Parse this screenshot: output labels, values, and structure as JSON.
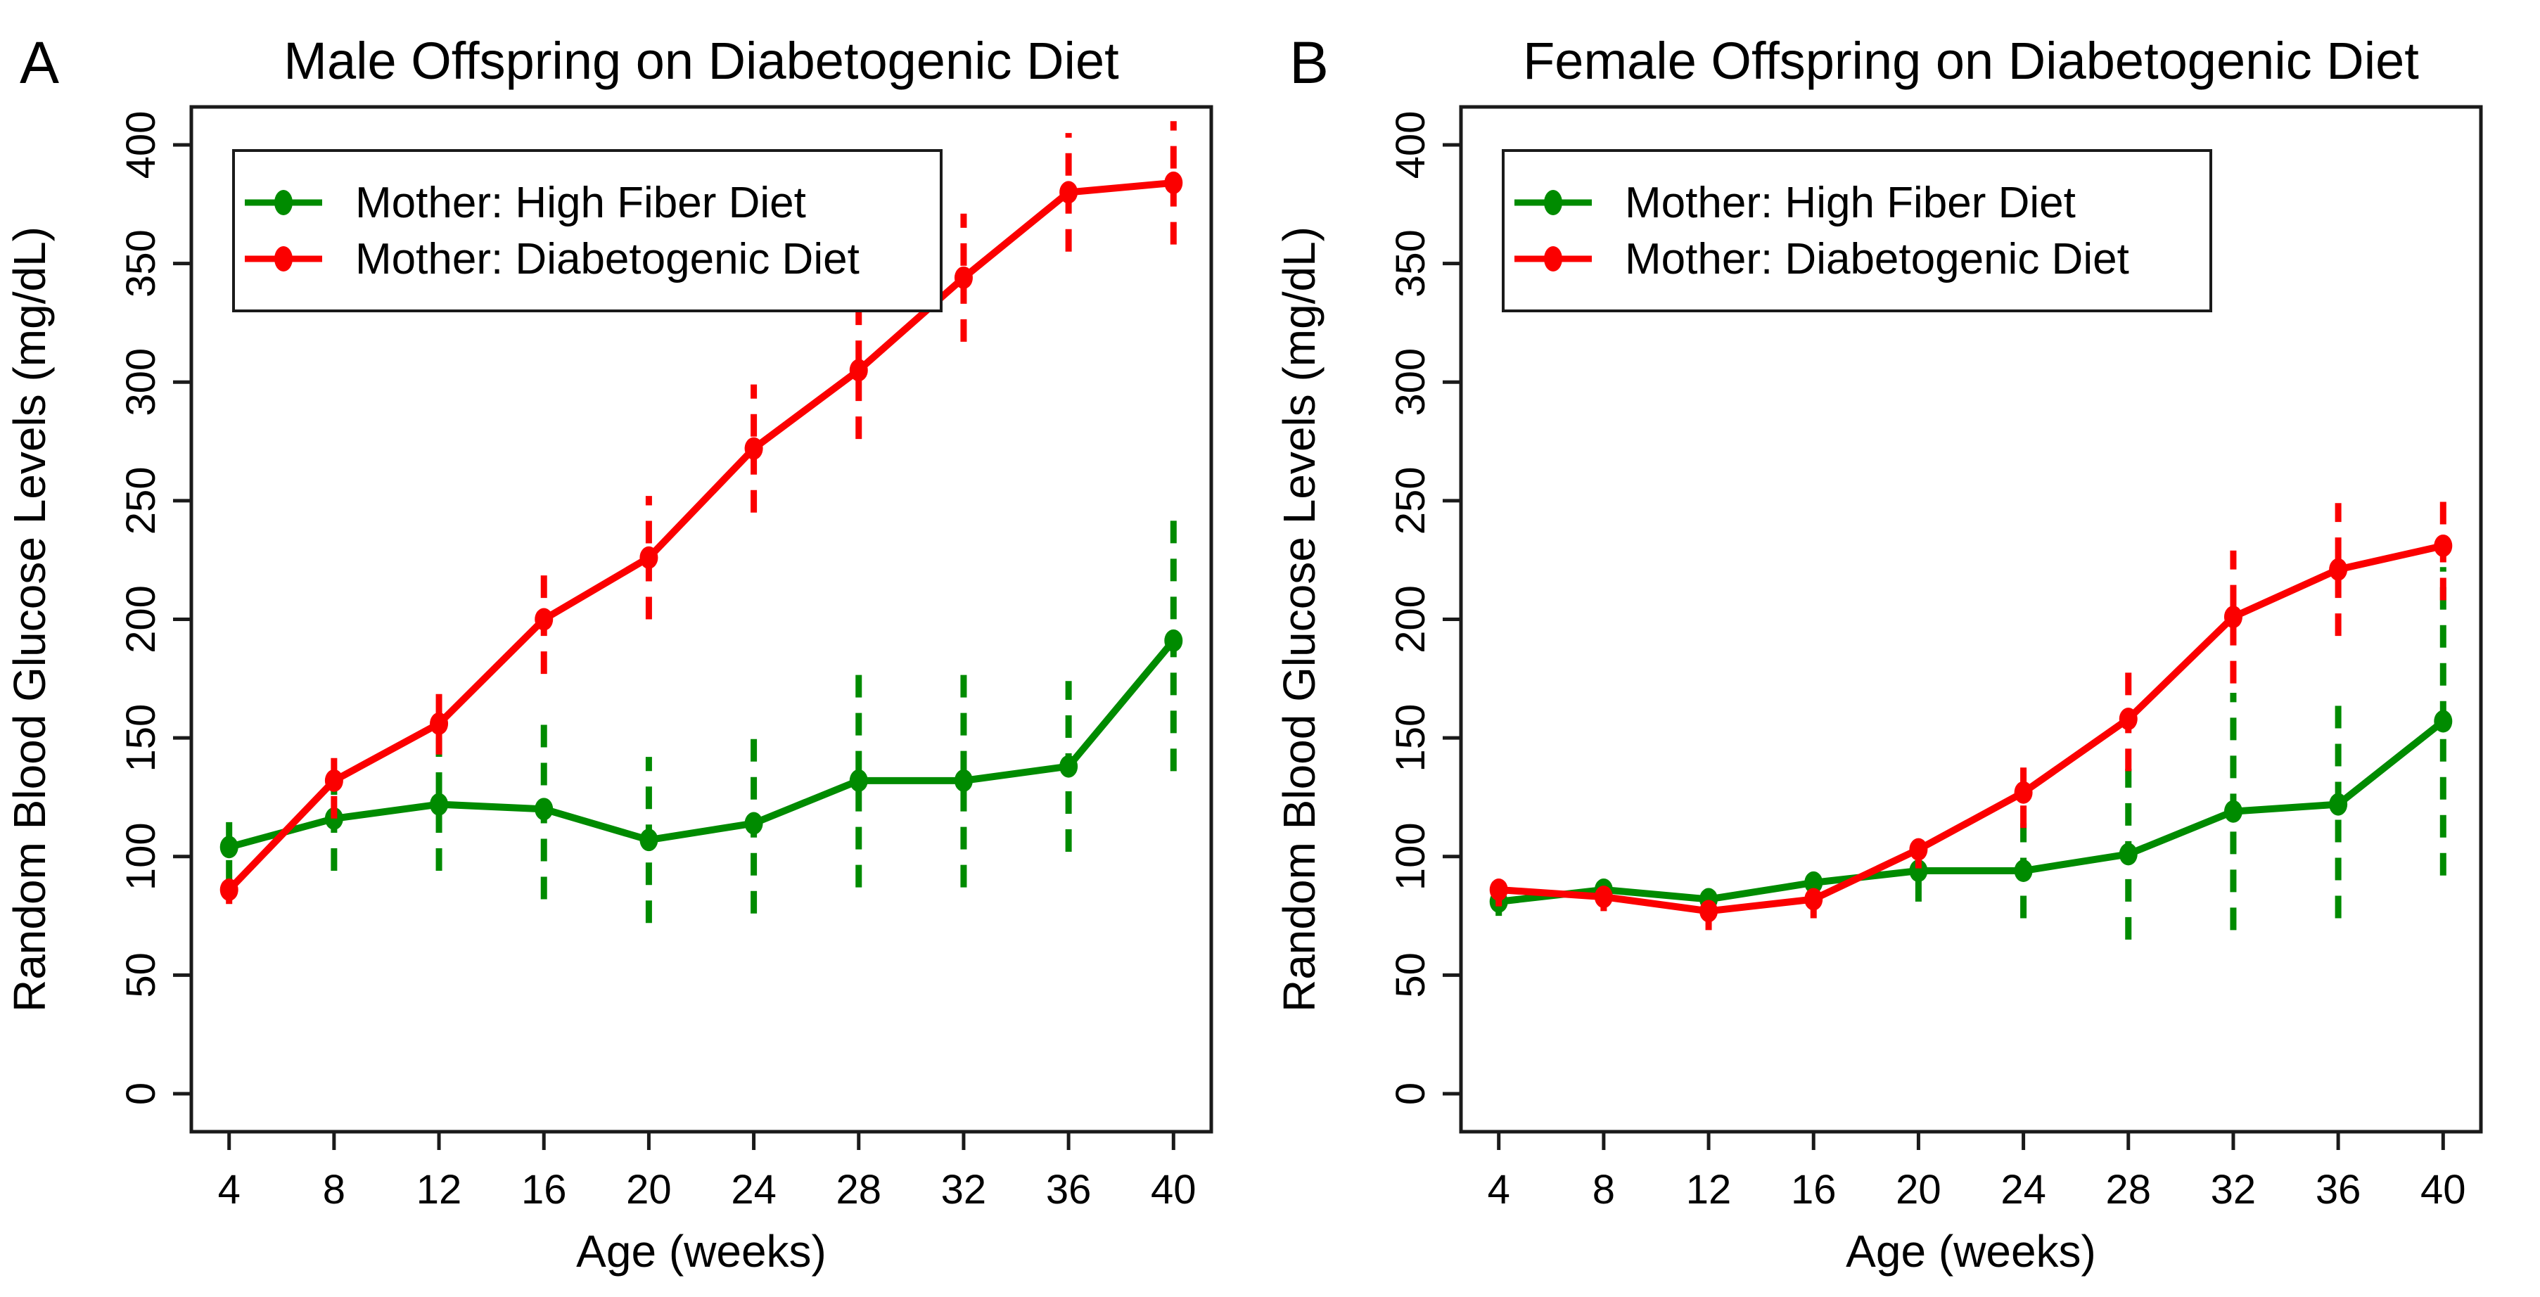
{
  "figure": {
    "background": "#ffffff",
    "colors": {
      "high_fiber_green": "#008B00",
      "diabetogenic_red": "#FB0000",
      "axis_black": "#1a1a1a",
      "text_black": "#000000"
    }
  },
  "chart_data": [
    {
      "type": "line",
      "panel_label": "A",
      "title": "Male Offspring on Diabetogenic Diet",
      "xlabel": "Age (weeks)",
      "ylabel": "Random Blood Glucose Levels (mg/dL)",
      "x": [
        4,
        8,
        12,
        16,
        20,
        24,
        28,
        32,
        36,
        40
      ],
      "xticks": [
        4,
        8,
        12,
        16,
        20,
        24,
        28,
        32,
        36,
        40
      ],
      "ylim": [
        0,
        400
      ],
      "yticks": [
        0,
        50,
        100,
        150,
        200,
        250,
        300,
        350,
        400
      ],
      "grid": false,
      "error_bar_style": "dashed",
      "legend_position": "top-left",
      "series": [
        {
          "name": "Mother: High Fiber Diet",
          "color": "#008B00",
          "values": [
            104,
            116,
            122,
            120,
            107,
            114,
            132,
            132,
            138,
            191
          ],
          "errors": [
            15,
            22,
            28,
            38,
            35,
            38,
            45,
            45,
            36,
            55
          ]
        },
        {
          "name": "Mother: Diabetogenic Diet",
          "color": "#FB0000",
          "values": [
            86,
            132,
            156,
            200,
            226,
            272,
            305,
            344,
            380,
            384
          ],
          "errors": [
            6,
            16,
            13,
            23,
            26,
            27,
            29,
            27,
            25,
            26
          ]
        }
      ]
    },
    {
      "type": "line",
      "panel_label": "B",
      "title": "Female Offspring on Diabetogenic Diet",
      "xlabel": "Age (weeks)",
      "ylabel": "Random Blood Glucose Levels (mg/dL)",
      "x": [
        4,
        8,
        12,
        16,
        20,
        24,
        28,
        32,
        36,
        40
      ],
      "xticks": [
        4,
        8,
        12,
        16,
        20,
        24,
        28,
        32,
        36,
        40
      ],
      "ylim": [
        0,
        400
      ],
      "yticks": [
        0,
        50,
        100,
        150,
        200,
        250,
        300,
        350,
        400
      ],
      "grid": false,
      "error_bar_style": "dashed",
      "legend_position": "top-left",
      "series": [
        {
          "name": "Mother: High Fiber Diet",
          "color": "#008B00",
          "values": [
            81,
            86,
            82,
            89,
            94,
            94,
            101,
            119,
            122,
            157
          ],
          "errors": [
            6,
            5,
            5,
            5,
            13,
            20,
            36,
            50,
            48,
            65
          ]
        },
        {
          "name": "Mother: Diabetogenic Diet",
          "color": "#FB0000",
          "values": [
            86,
            83,
            77,
            82,
            103,
            127,
            158,
            201,
            221,
            231
          ],
          "errors": [
            7,
            6,
            8,
            8,
            8,
            15,
            22,
            28,
            28,
            23
          ]
        }
      ]
    }
  ]
}
